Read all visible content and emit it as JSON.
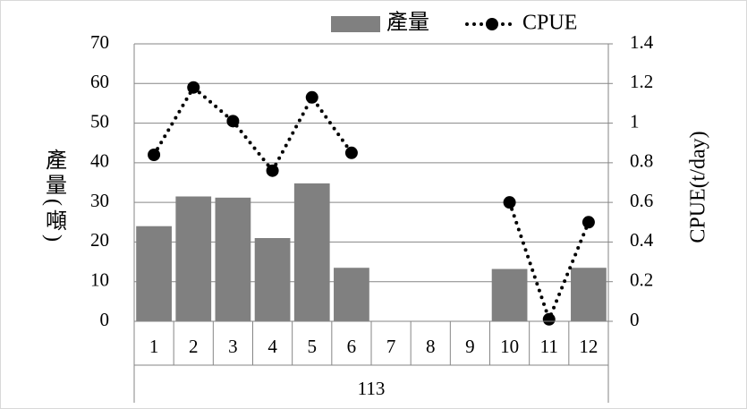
{
  "chart_data": {
    "type": "bar",
    "categories": [
      "1",
      "2",
      "3",
      "4",
      "5",
      "6",
      "7",
      "8",
      "9",
      "10",
      "11",
      "12"
    ],
    "x_group_label": "113",
    "series": [
      {
        "name": "產量",
        "type": "bar",
        "color": "#808080",
        "values": [
          24,
          31.5,
          31.2,
          21,
          34.8,
          13.5,
          null,
          null,
          null,
          13.2,
          0,
          13.5
        ]
      },
      {
        "name": "CPUE",
        "type": "line",
        "axis": "y2",
        "color": "#000000",
        "values": [
          0.84,
          1.18,
          1.01,
          0.76,
          1.13,
          0.85,
          null,
          null,
          null,
          0.6,
          0.01,
          0.5
        ]
      }
    ],
    "ylabel": "產量(噸)",
    "y2label": "CPUE(t/day)",
    "ylim": [
      0,
      70
    ],
    "yticks": [
      0,
      10,
      20,
      30,
      40,
      50,
      60,
      70
    ],
    "y2lim": [
      0,
      1.4
    ],
    "y2ticks": [
      0,
      0.2,
      0.4,
      0.6,
      0.8,
      1,
      1.2,
      1.4
    ],
    "grid": true,
    "legend": "top"
  }
}
